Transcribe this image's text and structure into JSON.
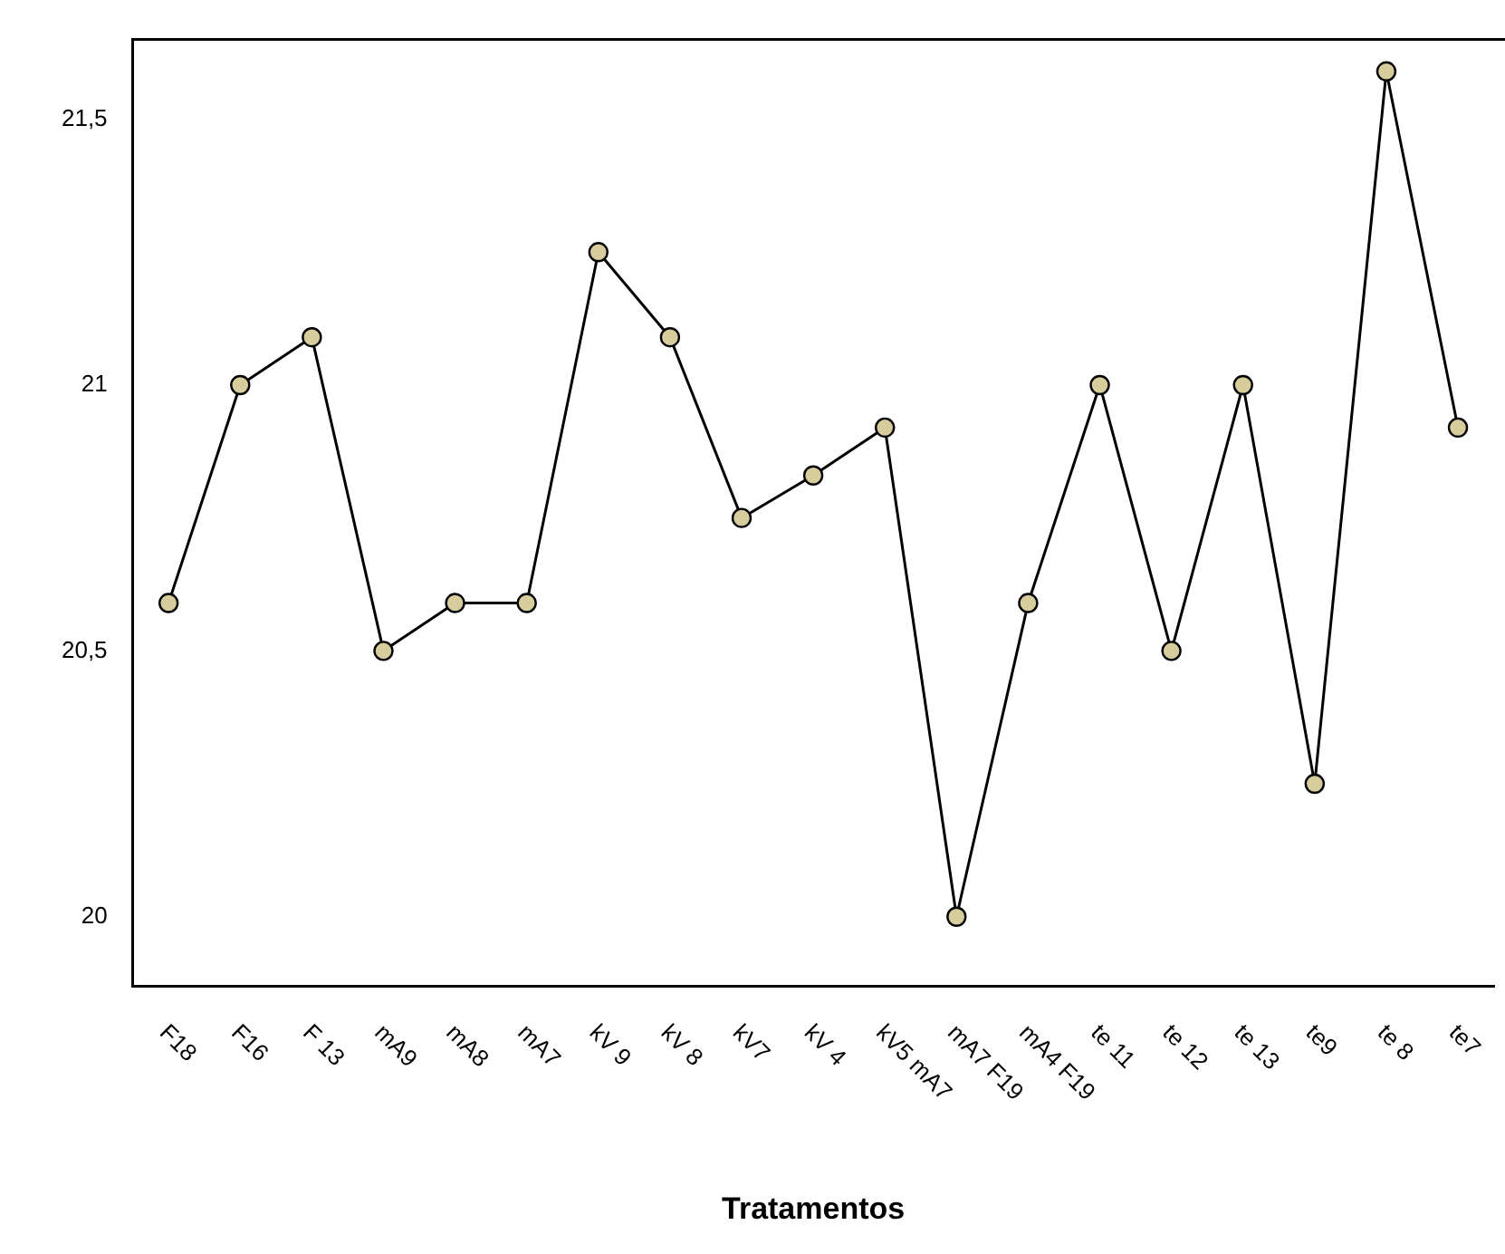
{
  "chart_data": {
    "type": "line",
    "xlabel": "Tratamentos",
    "categories": [
      "F18",
      "F16",
      "F 13",
      "mA9",
      "mA8",
      "mA7",
      "kV 9",
      "kV 8",
      "kV7",
      "kV 4",
      "kV5 mA7",
      "mA7 F19",
      "mA4 F19",
      "te 11",
      "te 12",
      "te 13",
      "te9",
      "te 8",
      "te7"
    ],
    "series": [
      {
        "color": "#000000",
        "values": [
          20.59,
          21.0,
          21.09,
          20.5,
          20.59,
          20.59,
          21.25,
          21.09,
          20.75,
          20.83,
          20.92,
          20.0,
          20.59,
          21.0,
          20.5,
          21.0,
          20.25,
          21.59,
          20.92
        ]
      }
    ],
    "ylim": [
      19.87,
      21.65
    ],
    "yticks": [
      {
        "value": 20,
        "label": "20"
      },
      {
        "value": 20.5,
        "label": "20,5"
      },
      {
        "value": 21,
        "label": "21"
      },
      {
        "value": 21.5,
        "label": "21,5"
      }
    ],
    "grid": false,
    "legend": false,
    "marker": "circle",
    "line_style": "solid"
  }
}
